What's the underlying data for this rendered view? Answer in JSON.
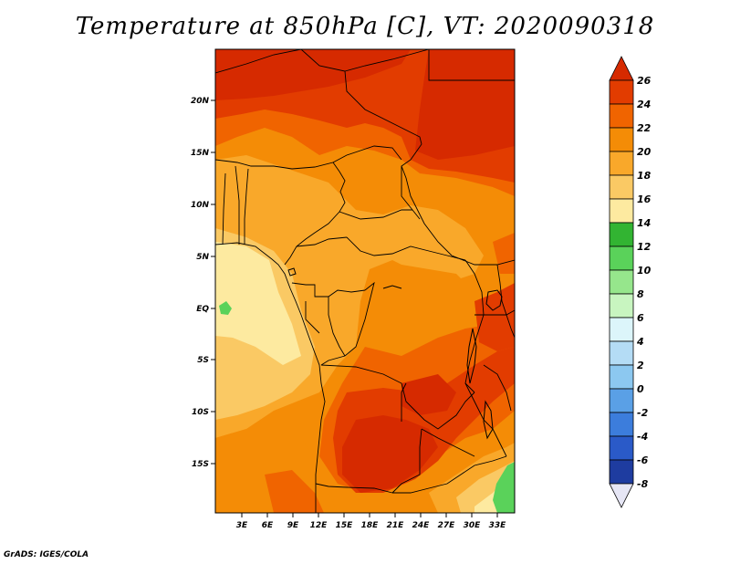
{
  "title": "Temperature at 850hPa [C], VT: 2020090318",
  "credit": "GrADS: IGES/COLA",
  "variable": "Temperature at 850hPa",
  "units": "C",
  "valid_time": "2020090318",
  "axes": {
    "lat_ticks": [
      "20N",
      "15N",
      "10N",
      "5N",
      "EQ",
      "5S",
      "10S",
      "15S"
    ],
    "lon_ticks": [
      "3E",
      "6E",
      "9E",
      "12E",
      "15E",
      "18E",
      "21E",
      "24E",
      "27E",
      "30E",
      "33E"
    ]
  },
  "colorbar": {
    "labels": [
      "26",
      "24",
      "22",
      "20",
      "18",
      "16",
      "14",
      "12",
      "10",
      "8",
      "6",
      "4",
      "2",
      "0",
      "-2",
      "-4",
      "-6",
      "-8"
    ],
    "colors": {
      "above_26": "#d62a00",
      "24_26": "#e23c00",
      "22_24": "#f06400",
      "20_22": "#f48c06",
      "18_20": "#f9a82a",
      "16_18": "#fac964",
      "14_16": "#fdeaa0",
      "12_14": "#32b432",
      "10_12": "#5ad25a",
      "8_10": "#96e68c",
      "6_8": "#c8f5c0",
      "4_6": "#dcf5fa",
      "2_4": "#b4dcf5",
      "0_2": "#8cc8f0",
      "m2_0": "#5aa0e6",
      "m4_m2": "#3c7ddc",
      "m6_m4": "#2a5ac8",
      "m8_m6": "#1e3ca0",
      "below_m8": "#0a1464",
      "under_tip": "#e6e6f5"
    }
  }
}
